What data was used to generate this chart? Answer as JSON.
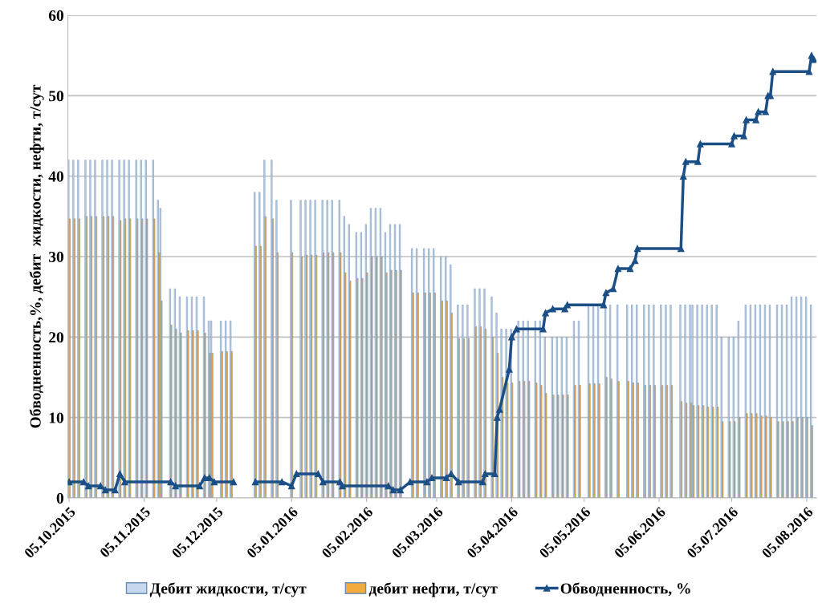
{
  "chart_data": {
    "type": "bar",
    "ylabel": "Обводненность,%, дебит  жидкости, нефти, т/сут",
    "x": [
      "2015-10-05",
      "2015-10-07",
      "2015-10-09",
      "2015-10-12",
      "2015-10-14",
      "2015-10-16",
      "2015-10-19",
      "2015-10-21",
      "2015-10-23",
      "2015-10-26",
      "2015-10-28",
      "2015-10-30",
      "2015-11-02",
      "2015-11-04",
      "2015-11-06",
      "2015-11-09",
      "2015-11-11",
      "2015-11-12",
      "2015-11-16",
      "2015-11-18",
      "2015-11-20",
      "2015-11-23",
      "2015-11-25",
      "2015-11-27",
      "2015-11-30",
      "2015-12-02",
      "2015-12-03",
      "2015-12-07",
      "2015-12-09",
      "2015-12-11",
      "2015-12-21",
      "2015-12-23",
      "2015-12-25",
      "2015-12-28",
      "2015-12-30",
      "2016-01-05",
      "2016-01-09",
      "2016-01-11",
      "2016-01-13",
      "2016-01-15",
      "2016-01-18",
      "2016-01-20",
      "2016-01-22",
      "2016-01-25",
      "2016-01-27",
      "2016-01-29",
      "2016-02-01",
      "2016-02-03",
      "2016-02-05",
      "2016-02-07",
      "2016-02-09",
      "2016-02-11",
      "2016-02-13",
      "2016-02-15",
      "2016-02-17",
      "2016-02-19",
      "2016-02-24",
      "2016-02-26",
      "2016-02-29",
      "2016-03-02",
      "2016-03-04",
      "2016-03-07",
      "2016-03-09",
      "2016-03-11",
      "2016-03-14",
      "2016-03-16",
      "2016-03-18",
      "2016-03-21",
      "2016-03-23",
      "2016-03-25",
      "2016-03-28",
      "2016-03-30",
      "2016-04-01",
      "2016-04-03",
      "2016-04-05",
      "2016-04-08",
      "2016-04-10",
      "2016-04-12",
      "2016-04-15",
      "2016-04-17",
      "2016-04-19",
      "2016-04-22",
      "2016-04-24",
      "2016-04-26",
      "2016-04-28",
      "2016-05-01",
      "2016-05-03",
      "2016-05-07",
      "2016-05-09",
      "2016-05-11",
      "2016-05-14",
      "2016-05-16",
      "2016-05-19",
      "2016-05-23",
      "2016-05-25",
      "2016-05-27",
      "2016-05-30",
      "2016-06-01",
      "2016-06-03",
      "2016-06-06",
      "2016-06-08",
      "2016-06-10",
      "2016-06-14",
      "2016-06-16",
      "2016-06-18",
      "2016-06-19",
      "2016-06-21",
      "2016-06-23",
      "2016-06-25",
      "2016-06-27",
      "2016-06-29",
      "2016-07-01",
      "2016-07-04",
      "2016-07-06",
      "2016-07-08",
      "2016-07-11",
      "2016-07-13",
      "2016-07-15",
      "2016-07-17",
      "2016-07-19",
      "2016-07-21",
      "2016-07-24",
      "2016-07-26",
      "2016-07-28",
      "2016-07-30",
      "2016-08-01",
      "2016-08-03",
      "2016-08-05",
      "2016-08-07"
    ],
    "series": [
      {
        "name": "Дебит жидкости, т/сут",
        "color": "#c5d8ee",
        "values": [
          42,
          42,
          42,
          42,
          42,
          42,
          42,
          42,
          42,
          42,
          42,
          42,
          42,
          42,
          42,
          42,
          37,
          36,
          26,
          26,
          25,
          25,
          25,
          25,
          25,
          22,
          22,
          22,
          22,
          22,
          38,
          38,
          42,
          42,
          37,
          37,
          37,
          37,
          37,
          37,
          37,
          37,
          37,
          37,
          35,
          34,
          33,
          33,
          34,
          36,
          36,
          36,
          33,
          34,
          34,
          34,
          31,
          31,
          31,
          31,
          31,
          30,
          30,
          29,
          24,
          24,
          24,
          26,
          26,
          26,
          25,
          23,
          21,
          21,
          21,
          22,
          22,
          22,
          22,
          22,
          20,
          20,
          20,
          20,
          20,
          22,
          22,
          24,
          24,
          24,
          24,
          24,
          24,
          24,
          24,
          24,
          24,
          24,
          24,
          24,
          24,
          24,
          24,
          24,
          24,
          24,
          24,
          24,
          24,
          24,
          24,
          20,
          20,
          20,
          22,
          24,
          24,
          24,
          24,
          24,
          24,
          24,
          24,
          24,
          25,
          25,
          25,
          25,
          24
        ]
      },
      {
        "name": "дебит нефти, т/сут",
        "color": "#f2ab3c",
        "values": [
          34.7,
          34.7,
          34.7,
          35,
          35,
          35,
          35,
          35,
          35,
          34.5,
          34.7,
          34.7,
          34.7,
          34.7,
          34.7,
          34.7,
          30.5,
          24.5,
          21.5,
          21,
          20.5,
          20.8,
          20.8,
          20.8,
          20.5,
          18,
          18,
          18.2,
          18.2,
          18.2,
          31.3,
          31.3,
          35,
          34.7,
          30.5,
          30.5,
          30,
          30.2,
          30.2,
          30.2,
          30.5,
          30.5,
          30.5,
          30.5,
          28,
          27,
          27.3,
          27.3,
          28,
          30,
          30,
          30,
          28,
          28.3,
          28.3,
          28.3,
          25.5,
          25.5,
          25.5,
          25.5,
          25.5,
          24.5,
          24.5,
          23,
          19.8,
          19.8,
          19.8,
          21.3,
          21.3,
          21,
          20,
          18,
          15,
          14.3,
          14.3,
          14.5,
          14.5,
          14.5,
          14.3,
          14,
          13,
          12.8,
          12.8,
          12.8,
          12.8,
          14,
          14,
          14.2,
          14.2,
          14.2,
          15,
          14.8,
          14.5,
          14.5,
          14.3,
          14.3,
          14,
          14,
          14,
          14,
          14,
          14,
          12,
          11.8,
          11.8,
          11.5,
          11.5,
          11.5,
          11.3,
          11.3,
          11.3,
          9.5,
          9.5,
          9.5,
          10,
          10.5,
          10.5,
          10.5,
          10.2,
          10.2,
          10,
          9.5,
          9.5,
          9.5,
          9.5,
          10,
          10,
          10,
          9
        ]
      },
      {
        "name": "Обводненность, %",
        "type": "line",
        "color": "#1b4f86",
        "marker": "triangle",
        "x": [
          "2015-10-05",
          "2015-10-11",
          "2015-10-13",
          "2015-10-18",
          "2015-10-20",
          "2015-10-24",
          "2015-10-26",
          "2015-10-28",
          "2015-11-16",
          "2015-11-18",
          "2015-11-28",
          "2015-11-30",
          "2015-12-02",
          "2015-12-04",
          "2015-12-12",
          "2015-12-16",
          "2015-12-21",
          "2016-01-01",
          "2016-01-05",
          "2016-01-07",
          "2016-01-16",
          "2016-01-18",
          "2016-01-25",
          "2016-01-26",
          "2016-02-14",
          "2016-02-16",
          "2016-02-19",
          "2016-02-23",
          "2016-03-01",
          "2016-03-03",
          "2016-03-09",
          "2016-03-11",
          "2016-03-14",
          "2016-03-24",
          "2016-03-25",
          "2016-03-29",
          "2016-03-30",
          "2016-03-31",
          "2016-04-04",
          "2016-04-05",
          "2016-04-07",
          "2016-04-18",
          "2016-04-19",
          "2016-04-22",
          "2016-04-27",
          "2016-04-28",
          "2016-05-13",
          "2016-05-14",
          "2016-05-17",
          "2016-05-19",
          "2016-05-24",
          "2016-05-26",
          "2016-05-27",
          "2016-06-14",
          "2016-06-15",
          "2016-06-16",
          "2016-06-21",
          "2016-06-22",
          "2016-07-05",
          "2016-07-06",
          "2016-07-10",
          "2016-07-11",
          "2016-07-15",
          "2016-07-16",
          "2016-07-19",
          "2016-07-20",
          "2016-07-21",
          "2016-07-22",
          "2016-08-06",
          "2016-08-07",
          "2016-08-08"
        ],
        "values": [
          2,
          2,
          1.5,
          1.5,
          1,
          1,
          3,
          2,
          2,
          1.5,
          1.5,
          2.5,
          2.5,
          2,
          2,
          null,
          2,
          2,
          1.5,
          3,
          3,
          2,
          2,
          1.5,
          1.5,
          1,
          1,
          2,
          2,
          2.5,
          2.5,
          3,
          2,
          2,
          3,
          3,
          10,
          11,
          16,
          20,
          21,
          21,
          23,
          23.5,
          23.5,
          24,
          24,
          25.5,
          26,
          28.5,
          28.5,
          29.5,
          31,
          31,
          40,
          41.8,
          41.8,
          44,
          44,
          45,
          45,
          47,
          47,
          48,
          48,
          50,
          50,
          53,
          53,
          55,
          54.5
        ]
      }
    ],
    "xlim": [
      "2015-10-04T12:00",
      "2016-08-09"
    ],
    "xticks": [
      {
        "value": "2015-10-05",
        "label": "05.10.2015"
      },
      {
        "value": "2015-11-05",
        "label": "05.11.2015"
      },
      {
        "value": "2015-12-05",
        "label": "05.12.2015"
      },
      {
        "value": "2016-01-05",
        "label": "05.01.2016"
      },
      {
        "value": "2016-02-05",
        "label": "05.02.2016"
      },
      {
        "value": "2016-03-05",
        "label": "05.03.2016"
      },
      {
        "value": "2016-04-05",
        "label": "05.04.2016"
      },
      {
        "value": "2016-05-05",
        "label": "05.05.2016"
      },
      {
        "value": "2016-06-05",
        "label": "05.06.2016"
      },
      {
        "value": "2016-07-05",
        "label": "05.07.2016"
      },
      {
        "value": "2016-08-05",
        "label": "05.08.2016"
      }
    ],
    "ylim": [
      0,
      60
    ],
    "yticks": [
      0,
      10,
      20,
      30,
      40,
      50,
      60
    ],
    "grid": "y",
    "legend": "bottom"
  }
}
